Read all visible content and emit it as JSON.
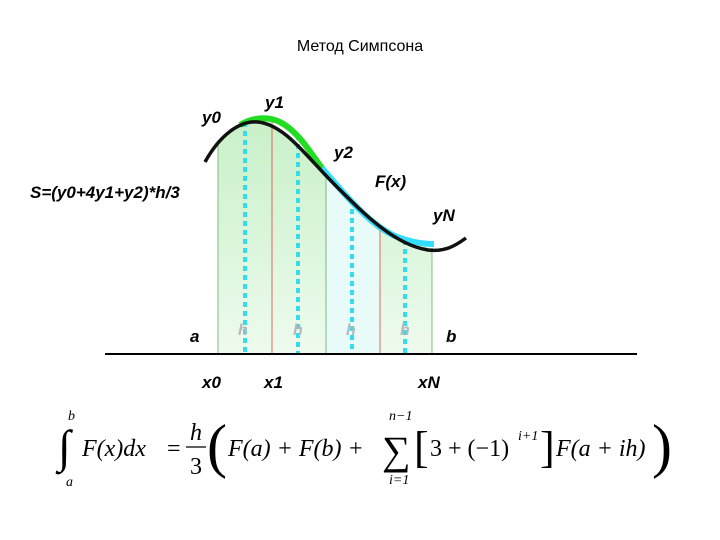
{
  "title": "Метод Симпсона",
  "labels": {
    "y0": "y0",
    "y1": "y1",
    "y2": "y2",
    "fx": "F(x)",
    "yN": "yN",
    "rule": "S=(y0+4y1+y2)*h/3",
    "a": "a",
    "b": "b",
    "x0": "x0",
    "x1": "x1",
    "xN": "xN"
  },
  "steps": [
    "h",
    "h",
    "h",
    "h"
  ],
  "formula": {
    "integral": "∫",
    "upper": "b",
    "lower": "a",
    "integrand": "F(x)dx",
    "equals": "=",
    "numerator": "h",
    "denominator": "3",
    "open": "(",
    "terms": "F(a) + F(b) +",
    "sum": "∑",
    "sum_upper": "n−1",
    "sum_lower": "i=1",
    "bracket_open": "[",
    "inner": "3 + (−1)",
    "power": "i+1",
    "bracket_close": "]",
    "tail": "F(a + ih)",
    "close": ")"
  }
}
